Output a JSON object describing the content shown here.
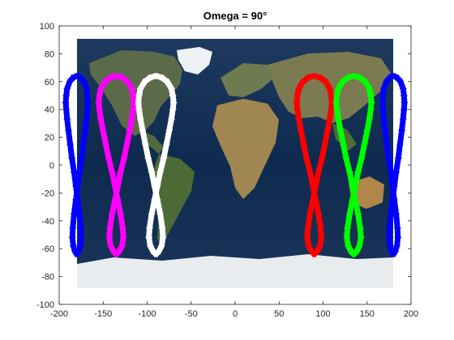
{
  "chart_data": {
    "type": "scatter",
    "title": "Omega = 90°",
    "xlabel": "",
    "ylabel": "",
    "xlim": [
      -200,
      200
    ],
    "ylim": [
      -100,
      100
    ],
    "x_ticks": [
      "-200",
      "-150",
      "-100",
      "-50",
      "0",
      "50",
      "100",
      "150",
      "200"
    ],
    "y_ticks": [
      "-100",
      "-80",
      "-60",
      "-40",
      "-20",
      "0",
      "20",
      "40",
      "60",
      "80",
      "100"
    ],
    "grid": false,
    "legend": "none",
    "marker": "asterisk",
    "background_image": "world-map",
    "background_extent": {
      "x": [
        -180,
        180
      ],
      "y": [
        -90,
        90
      ]
    },
    "ground_track_template": {
      "description_values": "figure-eight ground track, lon offset / lat pairs in degrees",
      "points": [
        [
          0,
          64
        ],
        [
          -4,
          63
        ],
        [
          -8,
          60
        ],
        [
          -11,
          55
        ],
        [
          -12,
          50
        ],
        [
          -12.5,
          45
        ],
        [
          -12,
          40
        ],
        [
          -11,
          33
        ],
        [
          -9.5,
          25
        ],
        [
          -7.5,
          15
        ],
        [
          -5.5,
          5
        ],
        [
          -3,
          -5
        ],
        [
          -1,
          -15
        ],
        [
          1,
          -25
        ],
        [
          3,
          -35
        ],
        [
          4.5,
          -45
        ],
        [
          5,
          -52
        ],
        [
          4,
          -58
        ],
        [
          2,
          -62
        ],
        [
          0,
          -64
        ],
        [
          -2,
          -62
        ],
        [
          -4,
          -58
        ],
        [
          -5,
          -52
        ],
        [
          -4.5,
          -45
        ],
        [
          -3,
          -35
        ],
        [
          -1,
          -25
        ],
        [
          1,
          -15
        ],
        [
          3,
          -5
        ],
        [
          5.5,
          5
        ],
        [
          7.5,
          15
        ],
        [
          9.5,
          25
        ],
        [
          11,
          33
        ],
        [
          12,
          40
        ],
        [
          12.5,
          45
        ],
        [
          12,
          50
        ],
        [
          11,
          55
        ],
        [
          8,
          60
        ],
        [
          4,
          63
        ],
        [
          0,
          64
        ]
      ]
    },
    "series": [
      {
        "color": "#0000ff",
        "center_lon": -180,
        "width_scale": 1.0
      },
      {
        "color": "#ff00ff",
        "center_lon": -135,
        "width_scale": 1.6
      },
      {
        "color": "#ffffff",
        "center_lon": -90,
        "width_scale": 1.6
      },
      {
        "color": "#ff0000",
        "center_lon": 90,
        "width_scale": 1.6
      },
      {
        "color": "#00ff00",
        "center_lon": 135,
        "width_scale": 1.6
      },
      {
        "color": "#0000ff",
        "center_lon": 180,
        "width_scale": 1.0
      }
    ]
  }
}
